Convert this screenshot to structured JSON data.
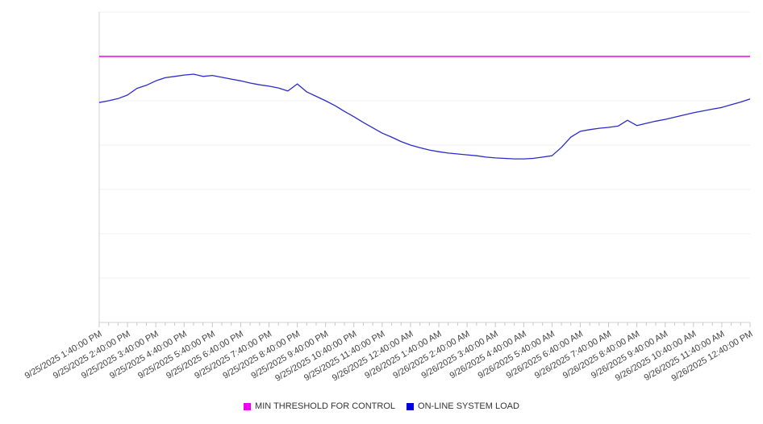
{
  "chart_data": {
    "type": "line",
    "title": "",
    "xlabel": "",
    "ylabel": "",
    "ylim": [
      0,
      70
    ],
    "y_gridline_step": 10,
    "grid": "horizontal",
    "legend_position": "bottom",
    "points_per_tick": 3,
    "x_tick_labels": [
      "9/25/2025 1:40:00 PM",
      "9/25/2025 2:40:00 PM",
      "9/25/2025 3:40:00 PM",
      "9/25/2025 4:40:00 PM",
      "9/25/2025 5:40:00 PM",
      "9/25/2025 6:40:00 PM",
      "9/25/2025 7:40:00 PM",
      "9/25/2025 8:40:00 PM",
      "9/25/2025 9:40:00 PM",
      "9/25/2025 10:40:00 PM",
      "9/25/2025 11:40:00 PM",
      "9/26/2025 12:40:00 AM",
      "9/26/2025 1:40:00 AM",
      "9/26/2025 2:40:00 AM",
      "9/26/2025 3:40:00 AM",
      "9/26/2025 4:40:00 AM",
      "9/26/2025 5:40:00 AM",
      "9/26/2025 6:40:00 AM",
      "9/26/2025 7:40:00 AM",
      "9/26/2025 8:40:00 AM",
      "9/26/2025 9:40:00 AM",
      "9/26/2025 10:40:00 AM",
      "9/26/2025 11:40:00 AM",
      "9/26/2025 12:40:00 PM"
    ],
    "series": [
      {
        "name": "MIN THRESHOLD FOR CONTROL",
        "type": "threshold-line",
        "color": "#ee00ee",
        "value": 60
      },
      {
        "name": "ON-LINE SYSTEM LOAD",
        "type": "line",
        "color": "#2b2bc8",
        "legend_color": "#0000e0",
        "values": [
          49.6,
          50.0,
          50.5,
          51.3,
          52.8,
          53.5,
          54.5,
          55.2,
          55.5,
          55.8,
          56.0,
          55.5,
          55.7,
          55.3,
          54.9,
          54.5,
          54.0,
          53.6,
          53.3,
          52.9,
          52.2,
          53.8,
          52.0,
          51.0,
          50.0,
          48.9,
          47.6,
          46.4,
          45.1,
          43.9,
          42.7,
          41.8,
          40.8,
          40.0,
          39.4,
          38.9,
          38.5,
          38.2,
          38.0,
          37.8,
          37.6,
          37.3,
          37.1,
          37.0,
          36.9,
          36.9,
          37.0,
          37.3,
          37.6,
          39.5,
          41.8,
          43.1,
          43.5,
          43.8,
          44.0,
          44.3,
          45.6,
          44.4,
          44.9,
          45.4,
          45.8,
          46.3,
          46.8,
          47.3,
          47.7,
          48.1,
          48.5,
          49.1,
          49.7,
          50.4
        ]
      }
    ]
  },
  "colors": {
    "grid": "#f0f0f0",
    "axis": "#d0d0d0",
    "tick": "#c8c8c8",
    "label": "#404040",
    "background": "#ffffff"
  }
}
